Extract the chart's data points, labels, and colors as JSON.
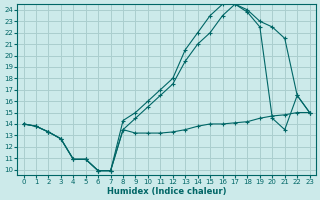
{
  "xlabel": "Humidex (Indice chaleur)",
  "bg_color": "#cceaea",
  "grid_color": "#aacece",
  "line_color": "#006666",
  "xlim": [
    -0.5,
    23.5
  ],
  "ylim": [
    9.5,
    24.5
  ],
  "xticks": [
    0,
    1,
    2,
    3,
    4,
    5,
    6,
    7,
    8,
    9,
    10,
    11,
    12,
    13,
    14,
    15,
    16,
    17,
    18,
    19,
    20,
    21,
    22,
    23
  ],
  "yticks": [
    10,
    11,
    12,
    13,
    14,
    15,
    16,
    17,
    18,
    19,
    20,
    21,
    22,
    23,
    24
  ],
  "series1": [
    14,
    13.8,
    13.3,
    12.7,
    10.9,
    10.9,
    9.9,
    9.9,
    13.5,
    13.2,
    13.2,
    13.2,
    13.3,
    13.5,
    13.8,
    14.0,
    14.0,
    14.1,
    14.2,
    14.5,
    14.7,
    14.8,
    15.0,
    15.0
  ],
  "series2": [
    14,
    13.8,
    13.3,
    12.7,
    10.9,
    10.9,
    9.9,
    9.9,
    13.5,
    14.5,
    15.5,
    16.5,
    17.5,
    19.5,
    21.0,
    22.0,
    23.5,
    24.5,
    24.0,
    23.0,
    22.5,
    21.5,
    16.5,
    15.0
  ],
  "series3": [
    14,
    13.8,
    13.3,
    12.7,
    10.9,
    10.9,
    9.9,
    9.9,
    14.3,
    15.0,
    16.0,
    17.0,
    18.0,
    20.5,
    22.0,
    23.5,
    24.5,
    24.5,
    23.8,
    22.5,
    14.5,
    13.5,
    16.5,
    15.0
  ]
}
